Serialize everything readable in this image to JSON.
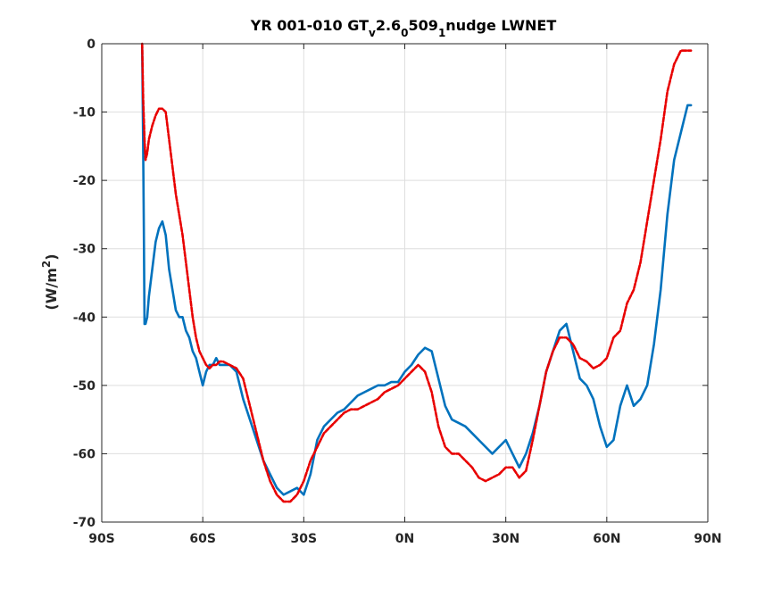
{
  "chart_data": {
    "type": "line",
    "title": {
      "main": "YR 001-010 GT",
      "parts": [
        {
          "text": "YR 001-010 GT",
          "shift": "base"
        },
        {
          "text": "v",
          "shift": "sub"
        },
        {
          "text": "2.6",
          "shift": "base"
        },
        {
          "text": "0",
          "shift": "sub"
        },
        {
          "text": "509",
          "shift": "base"
        },
        {
          "text": "1",
          "shift": "sub"
        },
        {
          "text": "nudge LWNET",
          "shift": "base"
        }
      ]
    },
    "ylabel": {
      "prefix": "(W/m",
      "superscript": "2",
      "suffix": ")"
    },
    "xlabel": "",
    "xlim": [
      -90,
      90
    ],
    "ylim": [
      -70,
      0
    ],
    "x_ticks": [
      -90,
      -60,
      -30,
      0,
      30,
      60,
      90
    ],
    "x_tick_labels": [
      "90S",
      "60S",
      "30S",
      "0N",
      "30N",
      "60N",
      "90N"
    ],
    "y_ticks": [
      0,
      -10,
      -20,
      -30,
      -40,
      -50,
      -60,
      -70
    ],
    "y_tick_labels": [
      "0",
      "-10",
      "-20",
      "-30",
      "-40",
      "-50",
      "-60",
      "-70"
    ],
    "grid": true,
    "colors": {
      "series_blue": "#0072BD",
      "series_red": "#E80000",
      "grid": "#dedede",
      "axis": "#262626"
    },
    "series": [
      {
        "line_style": "solid",
        "color": "#0072BD",
        "x": [
          -78,
          -77.7,
          -77.5,
          -77.3,
          -77,
          -76.5,
          -76,
          -75,
          -74,
          -73,
          -72,
          -71,
          -70,
          -69,
          -68,
          -67,
          -66,
          -65,
          -64,
          -63,
          -62,
          -61,
          -60,
          -59,
          -58,
          -57,
          -56,
          -55,
          -54,
          -52,
          -50,
          -48,
          -46,
          -44,
          -42,
          -40,
          -38,
          -36,
          -34,
          -32,
          -30,
          -28,
          -26,
          -24,
          -22,
          -20,
          -18,
          -16,
          -14,
          -12,
          -10,
          -8,
          -6,
          -4,
          -2,
          0,
          2,
          4,
          6,
          8,
          10,
          12,
          14,
          16,
          18,
          20,
          22,
          24,
          26,
          28,
          30,
          32,
          34,
          36,
          38,
          40,
          42,
          44,
          46,
          48,
          50,
          52,
          54,
          56,
          58,
          60,
          62,
          64,
          66,
          68,
          70,
          72,
          74,
          76,
          78,
          80,
          82,
          84,
          85
        ],
        "y": [
          -0.5,
          -15,
          -27,
          -41,
          -41,
          -40,
          -37,
          -33,
          -29,
          -27,
          -26,
          -28,
          -33,
          -36,
          -39,
          -40,
          -40,
          -42,
          -43,
          -45,
          -46,
          -48,
          -50,
          -48,
          -47,
          -47,
          -46,
          -47,
          -47,
          -47,
          -48,
          -52,
          -55,
          -58,
          -61,
          -63,
          -65,
          -66,
          -65.5,
          -65,
          -66,
          -63,
          -58,
          -56,
          -55,
          -54,
          -53.5,
          -52.5,
          -51.5,
          -51,
          -50.5,
          -50,
          -50,
          -49.5,
          -49.5,
          -48,
          -47,
          -45.5,
          -44.5,
          -45,
          -49,
          -53,
          -55,
          -55.5,
          -56,
          -57,
          -58,
          -59,
          -60,
          -59,
          -58,
          -60,
          -62,
          -60,
          -57,
          -53,
          -48,
          -45,
          -42,
          -41,
          -45,
          -49,
          -50,
          -52,
          -56,
          -59,
          -58,
          -53,
          -50,
          -53,
          -52,
          -50,
          -44,
          -36,
          -25,
          -17,
          -13,
          -9,
          -9
        ]
      },
      {
        "line_style": "dashed",
        "color": "#E80000",
        "x": [
          -78,
          -77.7,
          -77.3,
          -77,
          -76.5,
          -76,
          -75,
          -74,
          -73,
          -72,
          -71,
          -70,
          -69,
          -68,
          -67,
          -66,
          -65,
          -64,
          -63,
          -62,
          -61,
          -60,
          -59,
          -58,
          -57,
          -56,
          -55,
          -54,
          -52,
          -50,
          -48,
          -46,
          -44,
          -42,
          -40,
          -38,
          -36,
          -34,
          -32,
          -30,
          -28,
          -26,
          -24,
          -22,
          -20,
          -18,
          -16,
          -14,
          -12,
          -10,
          -8,
          -6,
          -4,
          -2,
          0,
          2,
          4,
          6,
          8,
          10,
          12,
          14,
          16,
          18,
          20,
          22,
          24,
          26,
          28,
          30,
          32,
          34,
          36,
          38,
          40,
          42,
          44,
          46,
          48,
          50,
          52,
          54,
          56,
          58,
          60,
          62,
          64,
          66,
          68,
          70,
          72,
          74,
          76,
          78,
          80,
          82,
          84,
          85
        ],
        "y": [
          0,
          -8,
          -14,
          -17,
          -16,
          -14,
          -12,
          -10.5,
          -9.5,
          -9.5,
          -10,
          -14,
          -18,
          -22,
          -25,
          -28,
          -32,
          -36,
          -40,
          -43,
          -45,
          -46,
          -47,
          -47.5,
          -47,
          -47,
          -46.5,
          -46.5,
          -47,
          -47.5,
          -49,
          -53,
          -57,
          -61,
          -64,
          -66,
          -67,
          -67,
          -66,
          -64,
          -61,
          -59,
          -57,
          -56,
          -55,
          -54,
          -53.5,
          -53.5,
          -53,
          -52.5,
          -52,
          -51,
          -50.5,
          -50,
          -49,
          -48,
          -47,
          -48,
          -51,
          -56,
          -59,
          -60,
          -60,
          -61,
          -62,
          -63.5,
          -64,
          -63.5,
          -63,
          -62,
          -62,
          -63.5,
          -62.5,
          -58,
          -53,
          -48,
          -45,
          -43,
          -43,
          -44,
          -46,
          -46.5,
          -47.5,
          -47,
          -46,
          -43,
          -42,
          -38,
          -36,
          -32,
          -26,
          -20,
          -14,
          -7,
          -3,
          -1,
          -1,
          -1
        ]
      }
    ]
  }
}
